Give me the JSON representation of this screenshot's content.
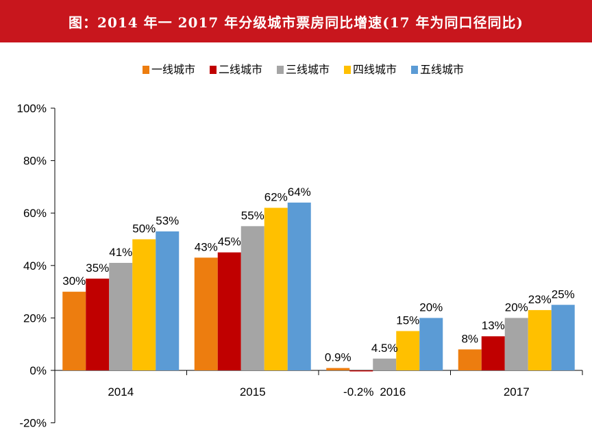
{
  "title": "图：2014 年一 2017 年分级城市票房同比增速(17 年为同口径同比)",
  "chart_data": {
    "type": "bar",
    "categories": [
      "2014",
      "2015",
      "2016",
      "2017"
    ],
    "series": [
      {
        "name": "一线城市",
        "color": "#ed7d0f",
        "values": [
          30,
          43,
          0.9,
          8
        ],
        "labels": [
          "30%",
          "43%",
          "0.9%",
          "8%"
        ]
      },
      {
        "name": "二线城市",
        "color": "#c00000",
        "values": [
          35,
          45,
          -0.2,
          13
        ],
        "labels": [
          "35%",
          "45%",
          "-0.2%",
          "13%"
        ]
      },
      {
        "name": "三线城市",
        "color": "#a5a5a5",
        "values": [
          41,
          55,
          4.5,
          20
        ],
        "labels": [
          "41%",
          "55%",
          "4.5%",
          "20%"
        ]
      },
      {
        "name": "四线城市",
        "color": "#ffc000",
        "values": [
          50,
          62,
          15,
          23
        ],
        "labels": [
          "50%",
          "62%",
          "15%",
          "23%"
        ]
      },
      {
        "name": "五线城市",
        "color": "#5b9bd5",
        "values": [
          53,
          64,
          20,
          25
        ],
        "labels": [
          "53%",
          "64%",
          "20%",
          "25%"
        ]
      }
    ],
    "yticks": [
      "100%",
      "80%",
      "60%",
      "40%",
      "20%",
      "0%",
      "-20%"
    ],
    "ytick_values": [
      100,
      80,
      60,
      40,
      20,
      0,
      -20
    ],
    "ylim": [
      -20,
      100
    ],
    "legend_position": "top",
    "grid": false
  }
}
